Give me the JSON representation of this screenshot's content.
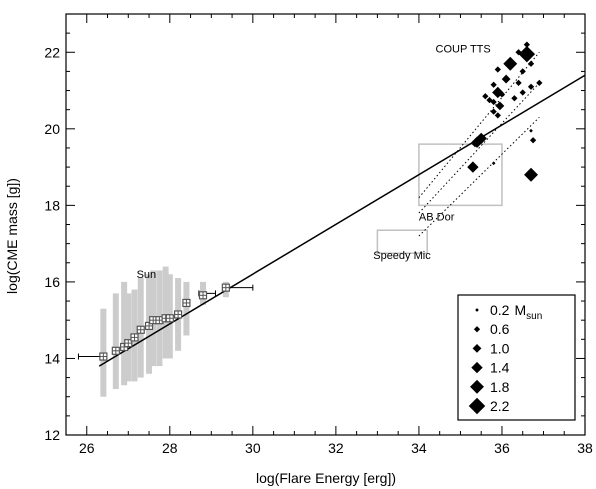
{
  "chart_data": {
    "type": "scatter",
    "xlabel": "log(Flare Energy [erg])",
    "ylabel": "log(CME mass [g])",
    "xlim": [
      25.5,
      38
    ],
    "ylim": [
      12,
      23
    ],
    "xticks": [
      26,
      28,
      30,
      32,
      34,
      36,
      38
    ],
    "yticks": [
      12,
      14,
      16,
      18,
      20,
      22
    ],
    "grid": false,
    "fit_line": {
      "x": [
        26.3,
        38
      ],
      "y": [
        13.8,
        21.4
      ]
    },
    "annotations": [
      {
        "id": "sun",
        "text": "Sun",
        "x": 27.2,
        "y": 16.1
      },
      {
        "id": "coup",
        "text": "COUP TTS",
        "x": 34.4,
        "y": 22.0
      },
      {
        "id": "abdor",
        "text": "AB Dor",
        "x": 34.0,
        "y": 17.6
      },
      {
        "id": "speedymic",
        "text": "Speedy Mic",
        "x": 32.9,
        "y": 16.6
      }
    ],
    "boxes": [
      {
        "name": "AB Dor",
        "x": [
          34.0,
          36.0
        ],
        "y": [
          18.0,
          19.6
        ]
      },
      {
        "name": "Speedy Mic",
        "x": [
          33.0,
          34.2
        ],
        "y": [
          16.75,
          17.35
        ]
      }
    ],
    "sun_series": {
      "name": "Sun",
      "x": [
        26.4,
        26.7,
        26.9,
        27.0,
        27.15,
        27.3,
        27.5,
        27.6,
        27.75,
        27.9,
        28.0,
        28.2,
        28.4,
        28.8,
        29.35
      ],
      "y": [
        14.05,
        14.2,
        14.3,
        14.4,
        14.55,
        14.75,
        14.85,
        15.0,
        15.0,
        15.05,
        15.05,
        15.15,
        15.45,
        15.65,
        15.85
      ],
      "band_low": [
        13.0,
        13.2,
        13.3,
        13.4,
        13.4,
        13.5,
        13.6,
        13.8,
        13.8,
        14.0,
        14.0,
        14.2,
        14.6,
        15.4,
        15.6
      ],
      "band_high": [
        15.3,
        15.7,
        16.0,
        15.7,
        15.8,
        16.1,
        16.2,
        16.3,
        16.3,
        16.4,
        16.2,
        16.1,
        16.0,
        16.0,
        16.0
      ]
    },
    "sun_xerr": [
      {
        "y": 14.05,
        "x": [
          25.8,
          26.4
        ]
      },
      {
        "y": 15.7,
        "x": [
          28.7,
          29.1
        ]
      },
      {
        "y": 15.85,
        "x": [
          29.35,
          30.0
        ]
      }
    ],
    "coup_points": [
      {
        "x": 36.6,
        "y": 22.2,
        "mass": 0.6
      },
      {
        "x": 36.4,
        "y": 22.0,
        "mass": 0.6
      },
      {
        "x": 36.6,
        "y": 21.95,
        "mass": 2.2
      },
      {
        "x": 36.2,
        "y": 21.7,
        "mass": 1.8
      },
      {
        "x": 36.7,
        "y": 21.7,
        "mass": 0.6
      },
      {
        "x": 35.9,
        "y": 21.55,
        "mass": 0.6
      },
      {
        "x": 36.5,
        "y": 21.5,
        "mass": 0.6
      },
      {
        "x": 36.1,
        "y": 21.3,
        "mass": 1.0
      },
      {
        "x": 36.4,
        "y": 21.2,
        "mass": 0.6
      },
      {
        "x": 36.9,
        "y": 21.2,
        "mass": 0.6
      },
      {
        "x": 35.8,
        "y": 21.15,
        "mass": 0.6
      },
      {
        "x": 36.7,
        "y": 21.1,
        "mass": 0.6
      },
      {
        "x": 35.9,
        "y": 20.95,
        "mass": 1.4
      },
      {
        "x": 36.0,
        "y": 20.9,
        "mass": 0.6
      },
      {
        "x": 36.5,
        "y": 20.95,
        "mass": 0.6
      },
      {
        "x": 35.6,
        "y": 20.85,
        "mass": 0.6
      },
      {
        "x": 35.7,
        "y": 20.75,
        "mass": 0.6
      },
      {
        "x": 36.3,
        "y": 20.8,
        "mass": 0.6
      },
      {
        "x": 35.8,
        "y": 20.7,
        "mass": 0.6
      },
      {
        "x": 35.95,
        "y": 20.6,
        "mass": 1.0
      },
      {
        "x": 35.8,
        "y": 20.45,
        "mass": 0.6
      },
      {
        "x": 35.9,
        "y": 20.35,
        "mass": 0.6
      },
      {
        "x": 35.5,
        "y": 19.75,
        "mass": 1.4
      },
      {
        "x": 35.4,
        "y": 19.65,
        "mass": 1.4
      },
      {
        "x": 35.35,
        "y": 19.6,
        "mass": 0.6
      },
      {
        "x": 36.7,
        "y": 19.95,
        "mass": 0.2
      },
      {
        "x": 36.75,
        "y": 19.7,
        "mass": 0.6
      },
      {
        "x": 35.3,
        "y": 19.0,
        "mass": 1.4
      },
      {
        "x": 35.8,
        "y": 19.1,
        "mass": 0.2
      },
      {
        "x": 36.7,
        "y": 18.8,
        "mass": 1.8
      }
    ],
    "dotted_lines": [
      {
        "x": [
          34.0,
          36.9
        ],
        "y": [
          18.2,
          22.0
        ]
      },
      {
        "x": [
          34.0,
          36.9
        ],
        "y": [
          17.8,
          21.2
        ]
      },
      {
        "x": [
          34.0,
          36.9
        ],
        "y": [
          17.2,
          20.3
        ]
      }
    ],
    "legend": {
      "placement": "bottom-right",
      "entries": [
        {
          "value": "0.2",
          "unit": "M",
          "unit_sub": "sun",
          "mass": 0.2
        },
        {
          "value": "0.6",
          "mass": 0.6
        },
        {
          "value": "1.0",
          "mass": 1.0
        },
        {
          "value": "1.4",
          "mass": 1.4
        },
        {
          "value": "1.8",
          "mass": 1.8
        },
        {
          "value": "2.2",
          "mass": 2.2
        }
      ]
    },
    "colors": {
      "line": "#000000",
      "band": "#cccccc",
      "box": "#c0c0c0",
      "marker": "#000000",
      "sun_marker": "#555555"
    }
  }
}
